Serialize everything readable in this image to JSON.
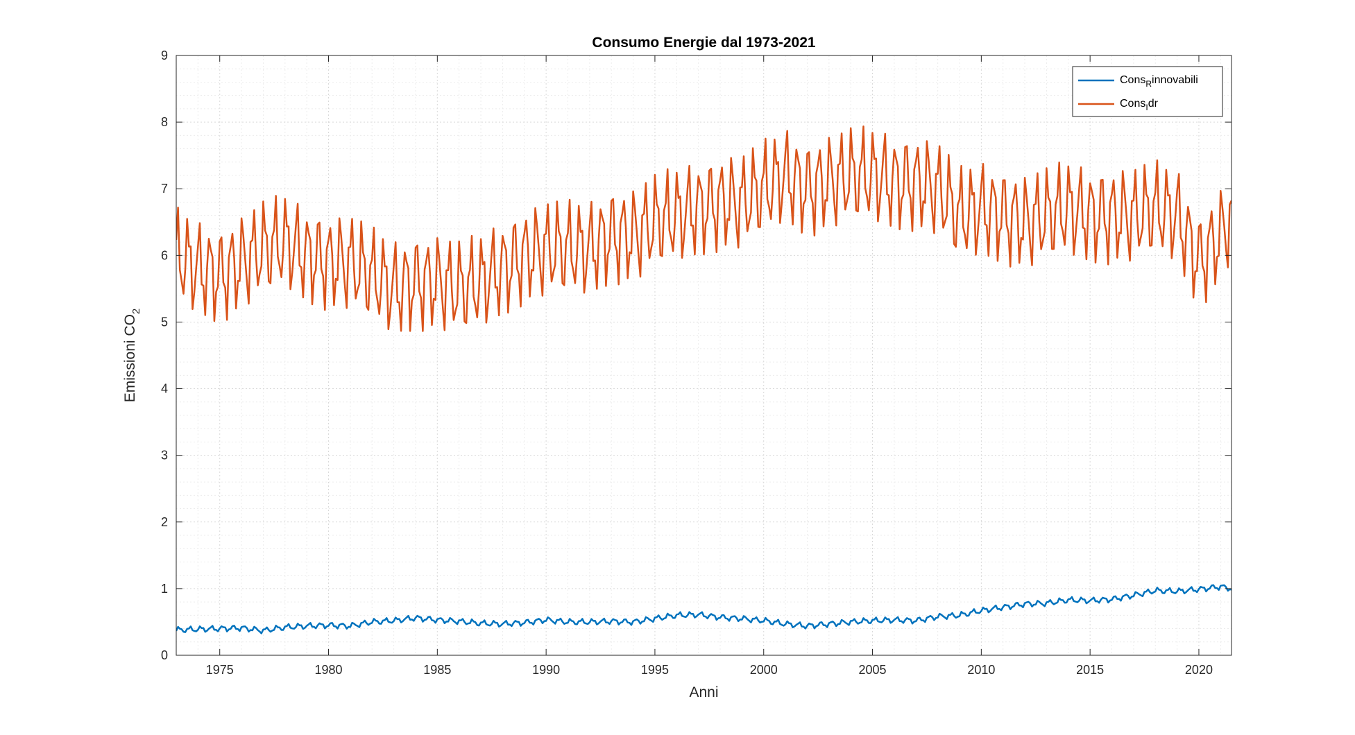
{
  "chart_data": {
    "type": "line",
    "title": "Consumo Energie dal 1973-2021",
    "xlabel": "Anni",
    "ylabel": "Emissioni CO",
    "ylabel_sub": "2",
    "xlim": [
      1973,
      2021.5
    ],
    "ylim": [
      0,
      9
    ],
    "xticks": [
      1975,
      1980,
      1985,
      1990,
      1995,
      2000,
      2005,
      2010,
      2015,
      2020
    ],
    "yticks": [
      0,
      1,
      2,
      3,
      4,
      5,
      6,
      7,
      8,
      9
    ],
    "grid": true,
    "minor_grid": true,
    "legend_position": "top-right",
    "colors": {
      "rinnovabili": "#0072BD",
      "idr": "#D95319"
    },
    "series": [
      {
        "key": "rinnovabili",
        "legend_main": "Cons",
        "legend_sub": "R",
        "legend_rest": "innovabili",
        "color": "#0072BD",
        "x": [
          1973,
          1974,
          1975,
          1976,
          1977,
          1978,
          1979,
          1980,
          1981,
          1982,
          1983,
          1984,
          1985,
          1986,
          1987,
          1988,
          1989,
          1990,
          1991,
          1992,
          1993,
          1994,
          1995,
          1996,
          1997,
          1998,
          1999,
          2000,
          2001,
          2002,
          2003,
          2004,
          2005,
          2006,
          2007,
          2008,
          2009,
          2010,
          2011,
          2012,
          2013,
          2014,
          2015,
          2016,
          2017,
          2018,
          2019,
          2020,
          2021,
          2021.5
        ],
        "y": [
          0.38,
          0.39,
          0.4,
          0.41,
          0.37,
          0.42,
          0.44,
          0.45,
          0.44,
          0.5,
          0.52,
          0.56,
          0.53,
          0.51,
          0.48,
          0.47,
          0.49,
          0.53,
          0.5,
          0.5,
          0.51,
          0.5,
          0.55,
          0.6,
          0.61,
          0.57,
          0.55,
          0.52,
          0.47,
          0.44,
          0.47,
          0.5,
          0.52,
          0.53,
          0.52,
          0.58,
          0.6,
          0.67,
          0.72,
          0.77,
          0.78,
          0.83,
          0.82,
          0.84,
          0.9,
          0.97,
          0.96,
          0.99,
          1.03,
          1.0
        ]
      },
      {
        "key": "idr",
        "legend_main": "Cons",
        "legend_sub": "I",
        "legend_rest": "dr",
        "color": "#D95319",
        "x": [
          1973,
          1974,
          1975,
          1976,
          1977,
          1978,
          1979,
          1980,
          1981,
          1982,
          1983,
          1984,
          1985,
          1986,
          1987,
          1988,
          1989,
          1990,
          1991,
          1992,
          1993,
          1994,
          1995,
          1996,
          1997,
          1998,
          1999,
          2000,
          2001,
          2002,
          2003,
          2004,
          2005,
          2006,
          2007,
          2008,
          2009,
          2010,
          2011,
          2012,
          2013,
          2014,
          2015,
          2016,
          2017,
          2018,
          2019,
          2020,
          2021,
          2021.5
        ],
        "y": [
          6.0,
          5.8,
          5.7,
          5.9,
          6.1,
          6.2,
          6.0,
          5.9,
          5.9,
          5.7,
          5.5,
          5.6,
          5.6,
          5.5,
          5.6,
          5.8,
          6.0,
          6.1,
          6.1,
          6.1,
          6.3,
          6.3,
          6.5,
          6.6,
          6.7,
          6.8,
          6.8,
          7.0,
          7.2,
          7.0,
          7.1,
          7.2,
          7.2,
          7.1,
          7.1,
          7.0,
          6.6,
          6.7,
          6.6,
          6.5,
          6.6,
          6.7,
          6.6,
          6.6,
          6.6,
          6.7,
          6.6,
          5.9,
          6.3,
          6.6
        ]
      }
    ]
  }
}
